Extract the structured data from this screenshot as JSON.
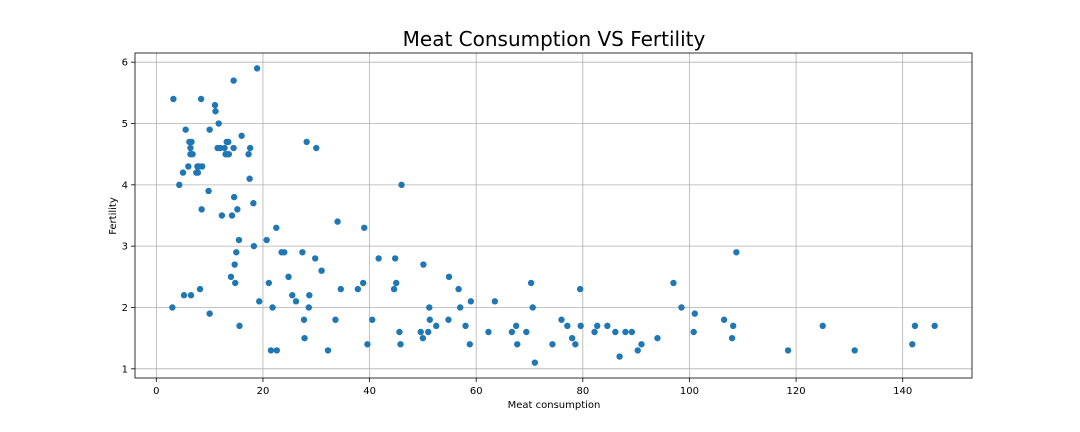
{
  "chart_data": {
    "type": "scatter",
    "title": "Meat Consumption VS Fertility",
    "xlabel": "Meat consumption",
    "ylabel": "Fertility",
    "xlim": [
      -4,
      153
    ],
    "ylim": [
      0.85,
      6.15
    ],
    "xticks": [
      0,
      20,
      40,
      60,
      80,
      100,
      120,
      140
    ],
    "yticks": [
      1,
      2,
      3,
      4,
      5,
      6
    ],
    "grid": true,
    "color": "#1f77b4",
    "series": [
      {
        "points": [
          [
            3.2,
            5.4
          ],
          [
            3.0,
            2.0
          ],
          [
            4.3,
            4.0
          ],
          [
            5.0,
            4.2
          ],
          [
            5.2,
            2.2
          ],
          [
            5.5,
            4.9
          ],
          [
            6.0,
            4.3
          ],
          [
            6.2,
            4.7
          ],
          [
            6.4,
            4.6
          ],
          [
            6.4,
            4.5
          ],
          [
            6.6,
            4.7
          ],
          [
            6.8,
            4.5
          ],
          [
            6.5,
            2.2
          ],
          [
            7.5,
            4.2
          ],
          [
            7.7,
            4.3
          ],
          [
            7.8,
            4.2
          ],
          [
            8.0,
            4.3
          ],
          [
            8.2,
            2.3
          ],
          [
            8.4,
            5.4
          ],
          [
            8.5,
            3.6
          ],
          [
            8.6,
            4.3
          ],
          [
            9.8,
            3.9
          ],
          [
            10.0,
            1.9
          ],
          [
            10.0,
            4.9
          ],
          [
            11.0,
            5.3
          ],
          [
            11.1,
            5.2
          ],
          [
            11.5,
            4.6
          ],
          [
            11.7,
            5.0
          ],
          [
            12.0,
            4.6
          ],
          [
            12.3,
            3.5
          ],
          [
            12.8,
            4.6
          ],
          [
            13.0,
            4.5
          ],
          [
            13.2,
            4.7
          ],
          [
            13.4,
            4.5
          ],
          [
            13.5,
            4.7
          ],
          [
            13.6,
            4.5
          ],
          [
            14.0,
            2.5
          ],
          [
            14.2,
            3.5
          ],
          [
            14.5,
            4.6
          ],
          [
            14.5,
            5.7
          ],
          [
            14.6,
            3.8
          ],
          [
            14.7,
            2.7
          ],
          [
            14.8,
            2.4
          ],
          [
            15.0,
            2.9
          ],
          [
            15.2,
            3.6
          ],
          [
            15.5,
            3.1
          ],
          [
            15.6,
            1.7
          ],
          [
            16.0,
            4.8
          ],
          [
            17.3,
            4.5
          ],
          [
            17.5,
            4.1
          ],
          [
            17.6,
            4.6
          ],
          [
            18.2,
            3.7
          ],
          [
            18.3,
            3.0
          ],
          [
            18.9,
            5.9
          ],
          [
            19.3,
            2.1
          ],
          [
            20.7,
            3.1
          ],
          [
            21.1,
            2.4
          ],
          [
            21.5,
            1.3
          ],
          [
            21.8,
            2.0
          ],
          [
            22.5,
            3.3
          ],
          [
            22.6,
            1.3
          ],
          [
            23.5,
            2.9
          ],
          [
            24.0,
            2.9
          ],
          [
            24.8,
            2.5
          ],
          [
            25.5,
            2.2
          ],
          [
            26.2,
            2.1
          ],
          [
            27.4,
            2.9
          ],
          [
            27.7,
            1.8
          ],
          [
            27.8,
            1.5
          ],
          [
            28.2,
            4.7
          ],
          [
            28.6,
            2.0
          ],
          [
            28.7,
            2.2
          ],
          [
            29.8,
            2.8
          ],
          [
            30.0,
            4.6
          ],
          [
            31.0,
            2.6
          ],
          [
            32.2,
            1.3
          ],
          [
            33.6,
            1.8
          ],
          [
            34.0,
            3.4
          ],
          [
            34.6,
            2.3
          ],
          [
            37.8,
            2.3
          ],
          [
            38.8,
            2.4
          ],
          [
            39.0,
            3.3
          ],
          [
            39.6,
            1.4
          ],
          [
            40.5,
            1.8
          ],
          [
            41.7,
            2.8
          ],
          [
            44.6,
            2.3
          ],
          [
            44.8,
            2.8
          ],
          [
            45.0,
            2.4
          ],
          [
            45.6,
            1.6
          ],
          [
            45.8,
            1.4
          ],
          [
            46.0,
            4.0
          ],
          [
            49.6,
            1.6
          ],
          [
            50.0,
            1.5
          ],
          [
            50.1,
            2.7
          ],
          [
            51.0,
            1.6
          ],
          [
            51.2,
            2.0
          ],
          [
            51.3,
            1.8
          ],
          [
            52.5,
            1.7
          ],
          [
            54.8,
            1.8
          ],
          [
            54.9,
            2.5
          ],
          [
            56.7,
            2.3
          ],
          [
            57.0,
            2.0
          ],
          [
            58.0,
            1.7
          ],
          [
            58.8,
            1.4
          ],
          [
            59.0,
            2.1
          ],
          [
            62.3,
            1.6
          ],
          [
            63.5,
            2.1
          ],
          [
            66.7,
            1.6
          ],
          [
            67.5,
            1.7
          ],
          [
            67.7,
            1.4
          ],
          [
            69.4,
            1.6
          ],
          [
            70.3,
            2.4
          ],
          [
            70.6,
            2.0
          ],
          [
            71.0,
            1.1
          ],
          [
            74.3,
            1.4
          ],
          [
            76.0,
            1.8
          ],
          [
            77.1,
            1.7
          ],
          [
            78.0,
            1.5
          ],
          [
            78.6,
            1.4
          ],
          [
            79.5,
            2.3
          ],
          [
            79.6,
            1.7
          ],
          [
            82.2,
            1.6
          ],
          [
            82.7,
            1.7
          ],
          [
            84.6,
            1.7
          ],
          [
            86.1,
            1.6
          ],
          [
            86.9,
            1.2
          ],
          [
            88.0,
            1.6
          ],
          [
            89.2,
            1.6
          ],
          [
            90.3,
            1.3
          ],
          [
            91.0,
            1.4
          ],
          [
            94.0,
            1.5
          ],
          [
            97.0,
            2.4
          ],
          [
            98.5,
            2.0
          ],
          [
            100.8,
            1.6
          ],
          [
            101.0,
            1.9
          ],
          [
            106.5,
            1.8
          ],
          [
            108.0,
            1.5
          ],
          [
            108.2,
            1.7
          ],
          [
            108.8,
            2.9
          ],
          [
            118.5,
            1.3
          ],
          [
            125.0,
            1.7
          ],
          [
            131.0,
            1.3
          ],
          [
            141.8,
            1.4
          ],
          [
            142.3,
            1.7
          ],
          [
            146.0,
            1.7
          ]
        ]
      }
    ]
  }
}
